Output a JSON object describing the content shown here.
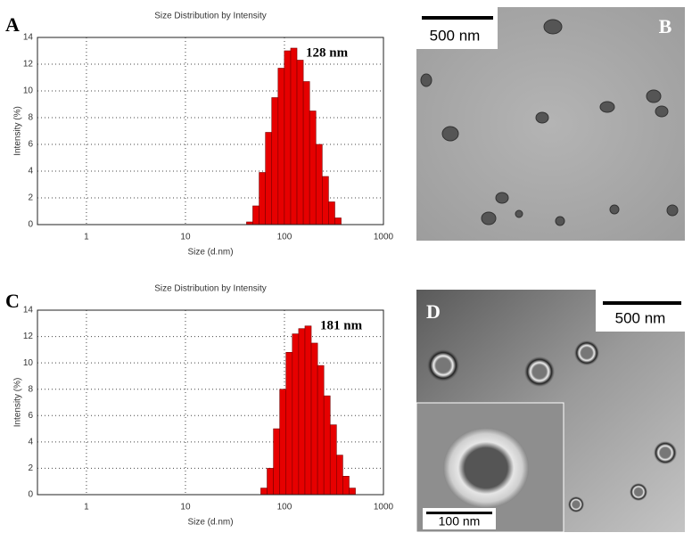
{
  "chart_data": [
    {
      "type": "histogram",
      "panel_label": "A",
      "title": "Size Distribution by Intensity",
      "x_label": "Size (d.nm)",
      "y_label": "Intensity (%)",
      "annotation": "128 nm",
      "bins": [
        41.4,
        47.9,
        55.5,
        64.3,
        74.4,
        86.2,
        99.8,
        115.6,
        133.8,
        155.0,
        179.5,
        207.8,
        240.6,
        278.7,
        322.7,
        373.7
      ],
      "values": [
        0.2,
        1.4,
        3.9,
        6.9,
        9.5,
        11.7,
        13.0,
        13.2,
        12.3,
        10.7,
        8.5,
        6.0,
        3.6,
        1.7,
        0.5
      ],
      "color": "#e60000",
      "xscale": "log",
      "xlim": [
        0.32,
        1000
      ],
      "xticks": [
        1,
        10,
        100,
        1000
      ],
      "ylim": [
        0,
        14
      ],
      "yticks": [
        0,
        2,
        4,
        6,
        8,
        10,
        12,
        14
      ],
      "grid": true
    },
    {
      "type": "histogram",
      "panel_label": "C",
      "title": "Size Distribution by Intensity",
      "x_label": "Size (d.nm)",
      "y_label": "Intensity (%)",
      "annotation": "181 nm",
      "bins": [
        57.7,
        66.8,
        77.4,
        89.6,
        103.7,
        120.1,
        139.1,
        161.1,
        186.5,
        216.0,
        250.1,
        289.6,
        335.4,
        388.4,
        449.7,
        520.8
      ],
      "values": [
        0.5,
        2.0,
        5.0,
        8.0,
        10.8,
        12.2,
        12.6,
        12.8,
        11.5,
        9.8,
        7.5,
        5.3,
        3.0,
        1.4,
        0.5
      ],
      "color": "#e60000",
      "xscale": "log",
      "xlim": [
        0.32,
        1000
      ],
      "xticks": [
        1,
        10,
        100,
        1000
      ],
      "ylim": [
        0,
        14
      ],
      "yticks": [
        0,
        2,
        4,
        6,
        8,
        10,
        12,
        14
      ],
      "grid": true
    }
  ],
  "images": [
    {
      "panel_label": "B",
      "scale_bar": "500 nm"
    },
    {
      "panel_label": "D",
      "scale_bar": "500 nm",
      "inset_scale_bar": "100 nm"
    }
  ]
}
